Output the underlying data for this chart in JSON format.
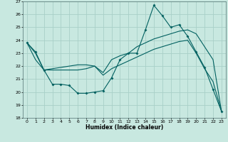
{
  "title": "",
  "xlabel": "Humidex (Indice chaleur)",
  "ylabel": "",
  "background_color": "#c8e8e0",
  "grid_color": "#a8d0c8",
  "line_color": "#006060",
  "xlim": [
    -0.5,
    23.5
  ],
  "ylim": [
    18,
    27
  ],
  "yticks": [
    18,
    19,
    20,
    21,
    22,
    23,
    24,
    25,
    26,
    27
  ],
  "xticks": [
    0,
    1,
    2,
    3,
    4,
    5,
    6,
    7,
    8,
    9,
    10,
    11,
    12,
    13,
    14,
    15,
    16,
    17,
    18,
    19,
    20,
    21,
    22,
    23
  ],
  "series0": [
    23.8,
    23.1,
    21.7,
    20.6,
    20.6,
    20.5,
    19.9,
    19.9,
    20.0,
    20.1,
    21.1,
    22.5,
    23.0,
    23.0,
    24.8,
    26.7,
    25.9,
    25.0,
    25.2,
    24.3,
    23.1,
    21.9,
    20.2,
    18.5
  ],
  "series1": [
    23.8,
    23.0,
    21.7,
    21.8,
    21.9,
    22.0,
    22.1,
    22.1,
    22.0,
    21.5,
    22.5,
    22.8,
    23.0,
    23.5,
    23.8,
    24.1,
    24.3,
    24.5,
    24.7,
    24.8,
    24.5,
    23.5,
    22.5,
    18.5
  ],
  "series2": [
    23.8,
    22.5,
    21.7,
    21.7,
    21.7,
    21.7,
    21.7,
    21.8,
    22.0,
    21.3,
    21.8,
    22.1,
    22.4,
    22.7,
    23.0,
    23.3,
    23.5,
    23.7,
    23.9,
    24.0,
    23.0,
    21.8,
    20.8,
    18.5
  ]
}
